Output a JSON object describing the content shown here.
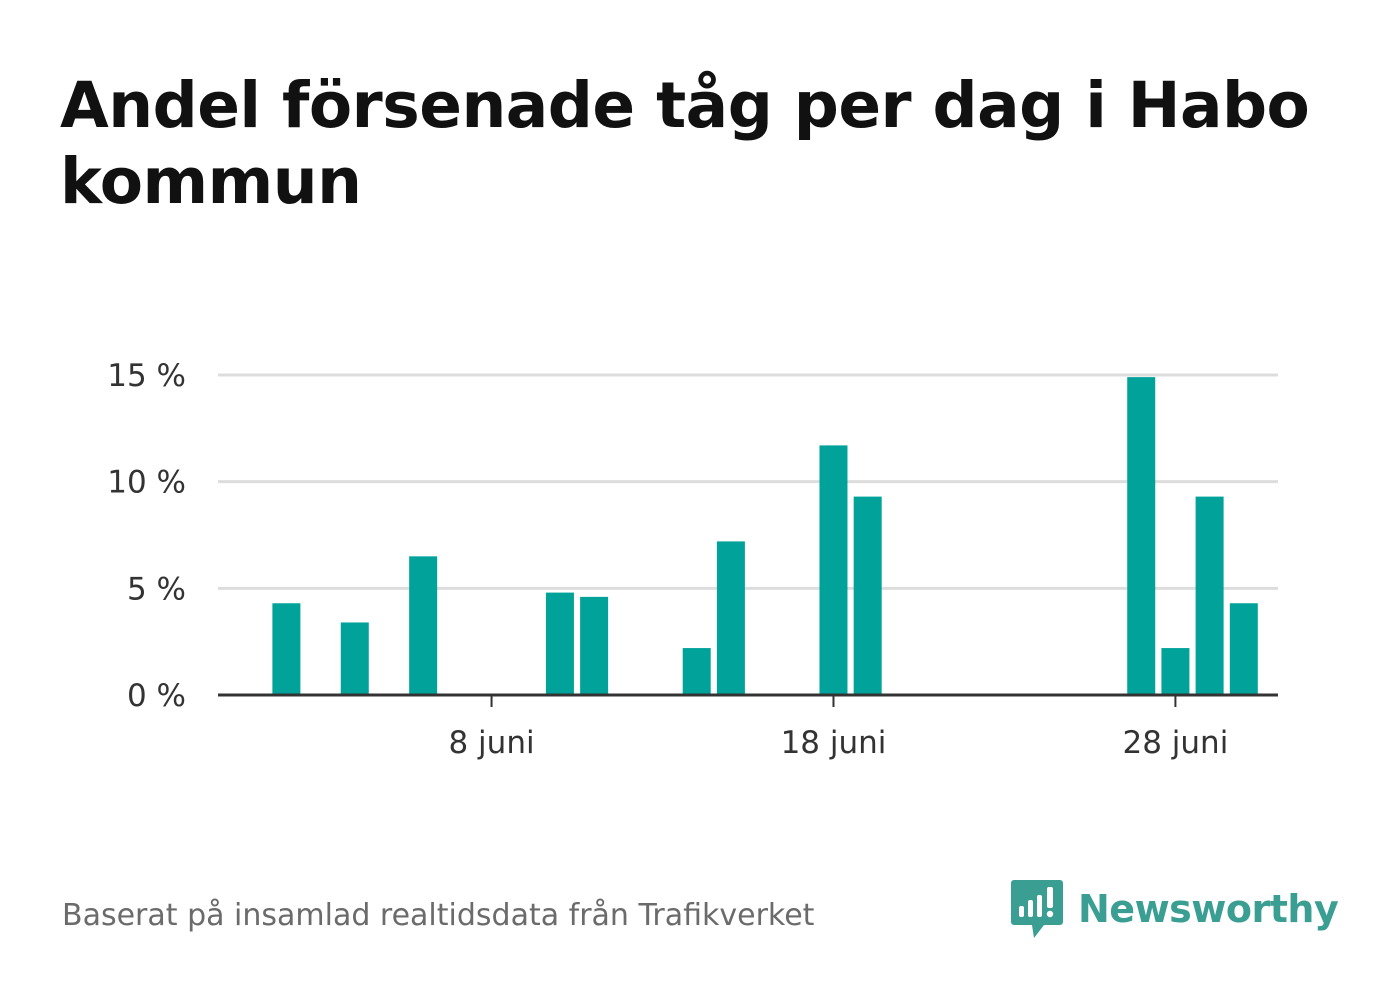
{
  "title": "Andel försenade tåg per dag i Habo kommun",
  "footer": {
    "source": "Baserat på insamlad realtidsdata från Trafikverket",
    "brand": "Newsworthy",
    "brand_icon": "newsworthy-logo-icon"
  },
  "colors": {
    "bar": "#00a29a",
    "grid": "#dddddd",
    "axis": "#333333",
    "brand": "#3a9e92"
  },
  "chart_data": {
    "type": "bar",
    "title": "Andel försenade tåg per dag i Habo kommun",
    "xlabel": "",
    "ylabel": "",
    "ylim": [
      0,
      15
    ],
    "yticks": [
      0,
      5,
      10,
      15
    ],
    "ytick_labels": [
      "0 %",
      "5 %",
      "10 %",
      "15 %"
    ],
    "xticks": [
      8,
      18,
      28
    ],
    "xtick_labels": [
      "8 juni",
      "18 juni",
      "28 juni"
    ],
    "x_range": [
      0,
      31
    ],
    "grid": true,
    "x": [
      2,
      4,
      6,
      10,
      11,
      14,
      15,
      18,
      19,
      27,
      28,
      29,
      30
    ],
    "values": [
      4.3,
      3.4,
      6.5,
      4.8,
      4.6,
      2.2,
      7.2,
      11.7,
      9.3,
      14.9,
      2.2,
      9.3,
      4.3
    ]
  }
}
